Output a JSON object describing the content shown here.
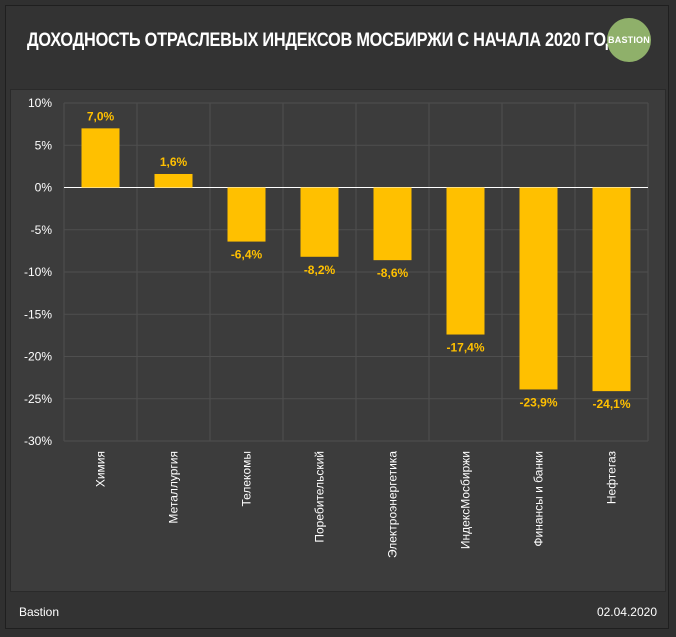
{
  "header": {
    "title": "ДОХОДНОСТЬ ОТРАСЛЕВЫХ ИНДЕКСОВ МОСБИРЖИ С НАЧАЛА 2020 ГОДА",
    "logo_text": "BASTION"
  },
  "footer": {
    "source": "Bastion",
    "date": "02.04.2020"
  },
  "colors": {
    "bar": "#ffc000",
    "label": "#ffc000",
    "axis_text": "#ffffff",
    "grid": "#4f4f4f",
    "logo": "#8fb06a"
  },
  "chart_data": {
    "type": "bar",
    "title": "ДОХОДНОСТЬ ОТРАСЛЕВЫХ ИНДЕКСОВ МОСБИРЖИ С НАЧАЛА 2020 ГОДА",
    "categories": [
      "Химия",
      "Металлургия",
      "Телекомы",
      "Поребительский",
      "Электроэнергетика",
      "ИндексМосбиржи",
      "Финансы и банки",
      "Нефтегаз"
    ],
    "values": [
      7.0,
      1.6,
      -6.4,
      -8.2,
      -8.6,
      -17.4,
      -23.9,
      -24.1
    ],
    "data_labels": [
      "7,0%",
      "1,6%",
      "-6,4%",
      "-8,2%",
      "-8,6%",
      "-17,4%",
      "-23,9%",
      "-24,1%"
    ],
    "yticks": [
      10,
      5,
      0,
      -5,
      -10,
      -15,
      -20,
      -25,
      -30
    ],
    "ytick_labels": [
      "10%",
      "5%",
      "0%",
      "-5%",
      "-10%",
      "-15%",
      "-20%",
      "-25%",
      "-30%"
    ],
    "ylim": [
      -30,
      10
    ],
    "xlabel": "",
    "ylabel": "",
    "grid": true,
    "legend": "none"
  }
}
